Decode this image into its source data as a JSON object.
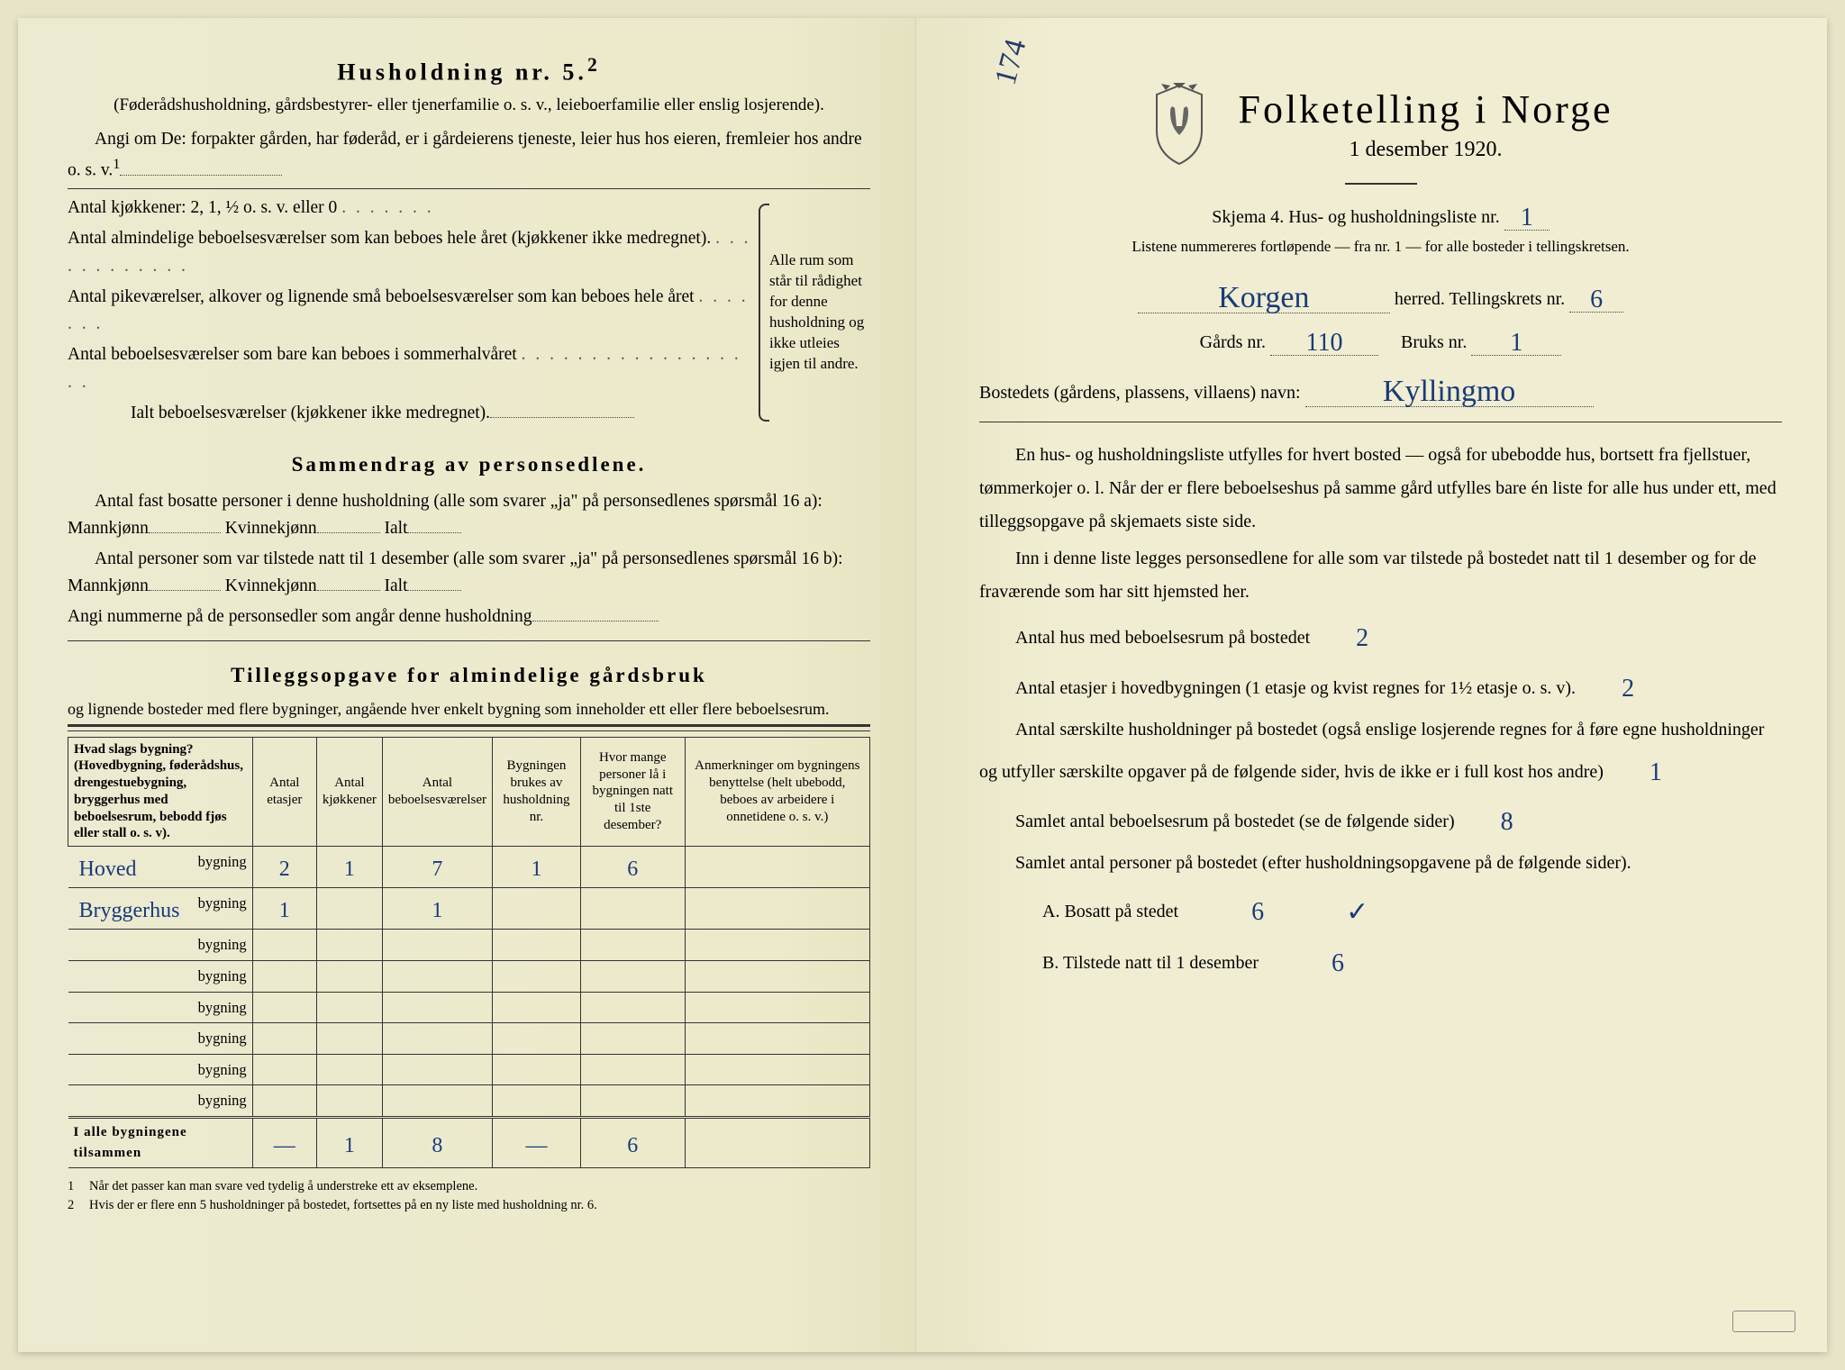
{
  "left": {
    "household_heading": "Husholdning nr. 5.",
    "household_sup": "2",
    "household_sub": "(Føderådshusholdning, gårdsbestyrer- eller tjenerfamilie o. s. v., leieboerfamilie eller enslig losjerende).",
    "angi_line": "Angi om De: forpakter gården, har føderåd, er i gårdeierens tjeneste, leier hus hos eieren, fremleier hos andre o. s. v.",
    "kitchens_label": "Antal kjøkkener: 2, 1, ½ o. s. v. eller 0",
    "rooms_lines": [
      "Antal almindelige beboelsesværelser som kan beboes hele året (kjøkkener ikke medregnet).",
      "Antal pikeværelser, alkover og lignende små beboelsesværelser som kan beboes hele året",
      "Antal beboelsesværelser som bare kan beboes i sommerhalvåret",
      "Ialt beboelsesværelser (kjøkkener ikke medregnet)."
    ],
    "brace_text": "Alle rum som står til rådighet for denne husholdning og ikke utleies igjen til andre.",
    "summary_title": "Sammendrag av personsedlene.",
    "summary_p1": "Antal fast bosatte personer i denne husholdning (alle som svarer „ja\" på personsedlenes spørsmål 16 a): Mannkjønn",
    "kvinne": "Kvinnekjønn",
    "ialt": "Ialt",
    "summary_p2": "Antal personer som var tilstede natt til 1 desember (alle som svarer „ja\" på personsedlenes spørsmål 16 b): Mannkjønn",
    "summary_p3": "Angi nummerne på de personsedler som angår denne husholdning",
    "tillegg_title": "Tilleggsopgave for almindelige gårdsbruk",
    "tillegg_sub": "og lignende bosteder med flere bygninger, angående hver enkelt bygning som inneholder ett eller flere beboelsesrum.",
    "table": {
      "headers": [
        "Hvad slags bygning?\n(Hovedbygning, føderådshus, drengestuebygning, bryggerhus med beboelsesrum, bebodd fjøs eller stall o. s. v).",
        "Antal etasjer",
        "Antal kjøkkener",
        "Antal beboelsesværelser",
        "Bygningen brukes av husholdning nr.",
        "Hvor mange personer lå i bygningen natt til 1ste desember?",
        "Anmerkninger om bygningens benyttelse (helt ubebodd, beboes av arbeidere i onnetidene o. s. v.)"
      ],
      "rows": [
        {
          "name": "Hoved",
          "etasjer": "2",
          "kjokken": "1",
          "beboelse": "7",
          "hushold": "1",
          "personer": "6",
          "anm": ""
        },
        {
          "name": "Bryggerhus",
          "etasjer": "1",
          "kjokken": "",
          "beboelse": "1",
          "hushold": "",
          "personer": "",
          "anm": ""
        },
        {
          "name": "",
          "etasjer": "",
          "kjokken": "",
          "beboelse": "",
          "hushold": "",
          "personer": "",
          "anm": ""
        },
        {
          "name": "",
          "etasjer": "",
          "kjokken": "",
          "beboelse": "",
          "hushold": "",
          "personer": "",
          "anm": ""
        },
        {
          "name": "",
          "etasjer": "",
          "kjokken": "",
          "beboelse": "",
          "hushold": "",
          "personer": "",
          "anm": ""
        },
        {
          "name": "",
          "etasjer": "",
          "kjokken": "",
          "beboelse": "",
          "hushold": "",
          "personer": "",
          "anm": ""
        },
        {
          "name": "",
          "etasjer": "",
          "kjokken": "",
          "beboelse": "",
          "hushold": "",
          "personer": "",
          "anm": ""
        },
        {
          "name": "",
          "etasjer": "",
          "kjokken": "",
          "beboelse": "",
          "hushold": "",
          "personer": "",
          "anm": ""
        }
      ],
      "total_label": "I alle bygningene tilsammen",
      "total": {
        "etasjer": "—",
        "kjokken": "1",
        "beboelse": "8",
        "hushold": "—",
        "personer": "6",
        "anm": ""
      },
      "bygning_suffix": "bygning"
    },
    "footnotes": [
      "Når det passer kan man svare ved tydelig å understreke ett av eksemplene.",
      "Hvis der er flere enn 5 husholdninger på bostedet, fortsettes på en ny liste med husholdning nr. 6."
    ]
  },
  "right": {
    "annotation": "174",
    "title": "Folketelling i Norge",
    "date": "1 desember 1920.",
    "skjema_prefix": "Skjema 4.  Hus- og husholdningsliste nr.",
    "skjema_nr": "1",
    "liste_note": "Listene nummereres fortløpende — fra nr. 1 — for alle bosteder i tellingskretsen.",
    "herred_value": "Korgen",
    "herred_label": "herred.  Tellingskrets nr.",
    "tellingskrets_nr": "6",
    "gards_label": "Gårds nr.",
    "gards_nr": "110",
    "bruks_label": "Bruks nr.",
    "bruks_nr": "1",
    "bosted_label": "Bostedets (gårdens, plassens, villaens) navn:",
    "bosted_value": "Kyllingmo",
    "para1": "En hus- og husholdningsliste utfylles for hvert bosted — også for ubebodde hus, bortsett fra fjellstuer, tømmerkojer o. l. Når der er flere beboelseshus på samme gård utfylles bare én liste for alle hus under ett, med tilleggsopgave på skjemaets siste side.",
    "para2": "Inn i denne liste legges personsedlene for alle som var tilstede på bostedet natt til 1 desember og for de fraværende som har sitt hjemsted her.",
    "q_hus_label": "Antal hus med beboelsesrum på bostedet",
    "q_hus_val": "2",
    "q_etasjer_label": "Antal etasjer i hovedbygningen (1 etasje og kvist regnes for 1½ etasje o. s. v).",
    "q_etasjer_val": "2",
    "q_hushold_label": "Antal særskilte husholdninger på bostedet (også enslige losjerende regnes for å føre egne husholdninger og utfyller særskilte opgaver på de følgende sider, hvis de ikke er i full kost hos andre)",
    "q_hushold_val": "1",
    "q_beboelse_label": "Samlet antal beboelsesrum på bostedet (se de følgende sider)",
    "q_beboelse_val": "8",
    "q_personer_label": "Samlet antal personer på bostedet (efter husholdningsopgavene på de følgende sider).",
    "qa_label": "A.  Bosatt på stedet",
    "qa_val": "6",
    "qa_check": "✓",
    "qb_label": "B.  Tilstede natt til 1 desember",
    "qb_val": "6"
  },
  "colors": {
    "ink": "#1a1a1a",
    "handwriting": "#1a3a7a",
    "paper": "#f0edd2"
  }
}
